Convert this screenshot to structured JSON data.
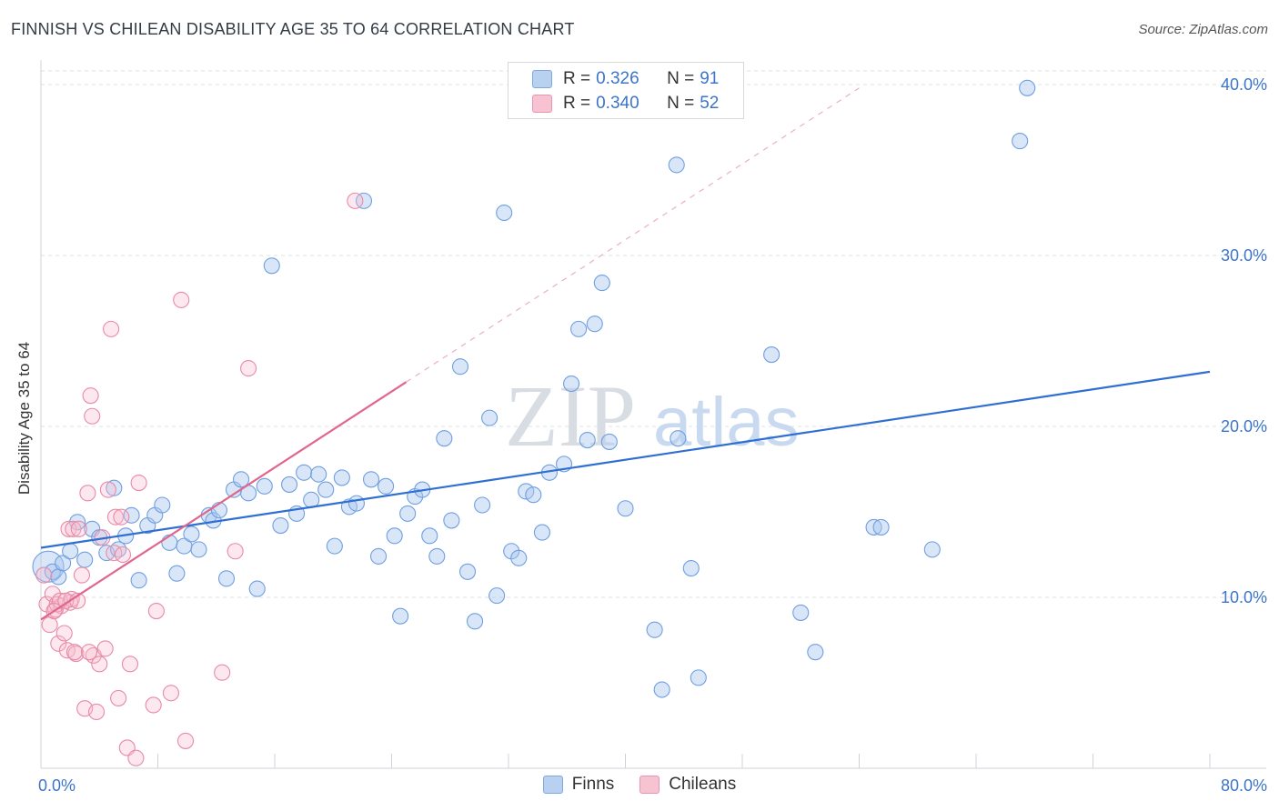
{
  "title": "FINNISH VS CHILEAN DISABILITY AGE 35 TO 64 CORRELATION CHART",
  "source": "Source: ZipAtlas.com",
  "watermark": {
    "zip": "ZIP",
    "atlas": "atlas"
  },
  "legend": {
    "r_label": "R =",
    "n_label": "N =",
    "items": [
      {
        "r": "0.326",
        "n": "91",
        "color": "#b8d1f1"
      },
      {
        "r": "0.340",
        "n": "52",
        "color": "#f7c3d3"
      }
    ]
  },
  "chart_data": {
    "type": "scatter",
    "title": "FINNISH VS CHILEAN DISABILITY AGE 35 TO 64 CORRELATION CHART",
    "xlabel": "",
    "ylabel": "Disability Age 35 to 64",
    "xlim": [
      0,
      80
    ],
    "ylim": [
      0,
      40.8
    ],
    "x_tick_labels": [
      "0.0%",
      "80.0%"
    ],
    "y_ticks": [
      10,
      20,
      30,
      40
    ],
    "y_tick_labels": [
      "10.0%",
      "20.0%",
      "30.0%",
      "40.0%"
    ],
    "grid": true,
    "colors": {
      "finns": "#6f9fe0",
      "chileans": "#e88aa8",
      "finns_line": "#2f6fd3",
      "chileans_line": "#e0668d"
    },
    "series": [
      {
        "name": "Finns",
        "points": [
          [
            0.5,
            11.8
          ],
          [
            0.8,
            11.5
          ],
          [
            1.2,
            11.2
          ],
          [
            1.5,
            12
          ],
          [
            2,
            12.7
          ],
          [
            2.5,
            14.4
          ],
          [
            3,
            12.2
          ],
          [
            3.5,
            14
          ],
          [
            4,
            13.5
          ],
          [
            4.5,
            12.6
          ],
          [
            5,
            16.4
          ],
          [
            5.3,
            12.8
          ],
          [
            5.8,
            13.6
          ],
          [
            6.2,
            14.8
          ],
          [
            6.7,
            11
          ],
          [
            7.3,
            14.2
          ],
          [
            7.8,
            14.8
          ],
          [
            8.3,
            15.4
          ],
          [
            8.8,
            13.2
          ],
          [
            9.3,
            11.4
          ],
          [
            9.8,
            13
          ],
          [
            10.3,
            13.7
          ],
          [
            10.8,
            12.8
          ],
          [
            11.5,
            14.8
          ],
          [
            11.8,
            14.5
          ],
          [
            12.2,
            15.1
          ],
          [
            12.7,
            11.1
          ],
          [
            13.2,
            16.3
          ],
          [
            13.7,
            16.9
          ],
          [
            14.2,
            16.1
          ],
          [
            14.8,
            10.5
          ],
          [
            15.3,
            16.5
          ],
          [
            15.8,
            29.4
          ],
          [
            16.4,
            14.2
          ],
          [
            17,
            16.6
          ],
          [
            17.5,
            14.9
          ],
          [
            18,
            17.3
          ],
          [
            18.5,
            15.7
          ],
          [
            19,
            17.2
          ],
          [
            19.5,
            16.3
          ],
          [
            20.1,
            13
          ],
          [
            20.6,
            17
          ],
          [
            21.1,
            15.3
          ],
          [
            21.6,
            15.5
          ],
          [
            22.1,
            33.2
          ],
          [
            22.6,
            16.9
          ],
          [
            23.1,
            12.4
          ],
          [
            23.6,
            16.5
          ],
          [
            24.2,
            13.6
          ],
          [
            24.6,
            8.9
          ],
          [
            25.1,
            14.9
          ],
          [
            25.6,
            15.9
          ],
          [
            26.1,
            16.3
          ],
          [
            26.6,
            13.6
          ],
          [
            27.1,
            12.4
          ],
          [
            27.6,
            19.3
          ],
          [
            28.1,
            14.5
          ],
          [
            28.7,
            23.5
          ],
          [
            29.2,
            11.5
          ],
          [
            29.7,
            8.6
          ],
          [
            30.2,
            15.4
          ],
          [
            30.7,
            20.5
          ],
          [
            31.2,
            10.1
          ],
          [
            31.7,
            32.5
          ],
          [
            32.2,
            12.7
          ],
          [
            32.7,
            12.3
          ],
          [
            33.2,
            16.2
          ],
          [
            33.7,
            16
          ],
          [
            34.3,
            13.8
          ],
          [
            34.8,
            17.3
          ],
          [
            35.8,
            17.8
          ],
          [
            36.3,
            22.5
          ],
          [
            36.8,
            25.7
          ],
          [
            37.4,
            19.2
          ],
          [
            37.9,
            26
          ],
          [
            38.4,
            28.4
          ],
          [
            38.9,
            19.1
          ],
          [
            40,
            15.2
          ],
          [
            42,
            8.1
          ],
          [
            42.5,
            4.6
          ],
          [
            43.5,
            35.3
          ],
          [
            43.6,
            19.3
          ],
          [
            44.5,
            11.7
          ],
          [
            45,
            5.3
          ],
          [
            50,
            24.2
          ],
          [
            52,
            9.1
          ],
          [
            53,
            6.8
          ],
          [
            57,
            14.1
          ],
          [
            57.5,
            14.1
          ],
          [
            61,
            12.8
          ],
          [
            67,
            36.7
          ],
          [
            67.5,
            39.8
          ]
        ],
        "trend": {
          "x": [
            0,
            80
          ],
          "y": [
            12.9,
            23.2
          ]
        }
      },
      {
        "name": "Chileans",
        "points": [
          [
            0.2,
            11.3
          ],
          [
            0.4,
            9.6
          ],
          [
            0.6,
            8.4
          ],
          [
            0.8,
            10.2
          ],
          [
            1,
            9.3
          ],
          [
            1.2,
            7.3
          ],
          [
            1.4,
            9.5
          ],
          [
            1.6,
            7.9
          ],
          [
            1.8,
            6.9
          ],
          [
            1.9,
            14
          ],
          [
            2,
            9.7
          ],
          [
            2.2,
            14
          ],
          [
            2.4,
            6.7
          ],
          [
            2.6,
            14
          ],
          [
            2.8,
            11.3
          ],
          [
            3,
            3.5
          ],
          [
            3.2,
            16.1
          ],
          [
            3.4,
            21.8
          ],
          [
            3.5,
            20.6
          ],
          [
            3.6,
            6.6
          ],
          [
            3.8,
            3.3
          ],
          [
            4,
            6.1
          ],
          [
            4.2,
            13.5
          ],
          [
            4.4,
            7
          ],
          [
            4.6,
            16.3
          ],
          [
            4.8,
            25.7
          ],
          [
            5,
            12.6
          ],
          [
            5.1,
            14.7
          ],
          [
            5.3,
            4.1
          ],
          [
            5.5,
            14.7
          ],
          [
            5.6,
            12.5
          ],
          [
            5.9,
            1.2
          ],
          [
            6.1,
            6.1
          ],
          [
            6.5,
            0.6
          ],
          [
            6.7,
            16.7
          ],
          [
            7.7,
            3.7
          ],
          [
            7.9,
            9.2
          ],
          [
            8.9,
            4.4
          ],
          [
            9.6,
            27.4
          ],
          [
            9.9,
            1.6
          ],
          [
            12.4,
            5.6
          ],
          [
            13.3,
            12.7
          ],
          [
            14.2,
            23.4
          ],
          [
            21.5,
            33.2
          ],
          [
            1.1,
            9.6
          ],
          [
            1.3,
            9.8
          ],
          [
            2.1,
            9.9
          ],
          [
            2.3,
            6.8
          ],
          [
            0.9,
            9.2
          ],
          [
            1.7,
            9.8
          ],
          [
            2.5,
            9.8
          ],
          [
            3.3,
            6.8
          ]
        ],
        "trend": {
          "x": [
            0,
            25
          ],
          "y": [
            8.7,
            22.6
          ]
        },
        "trend_extension": {
          "x": [
            25,
            56
          ],
          "y": [
            22.6,
            39.8
          ]
        }
      }
    ]
  }
}
